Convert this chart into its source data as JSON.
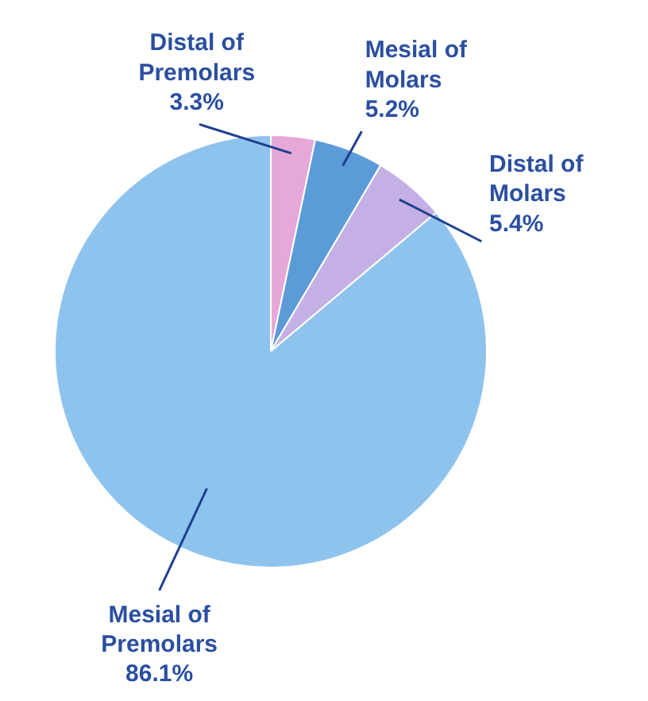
{
  "chart_data": {
    "type": "pie",
    "categories": [
      "Distal of Premolars",
      "Mesial of Molars",
      "Distal of Molars",
      "Mesial of Premolars"
    ],
    "values": [
      3.3,
      5.2,
      5.4,
      86.1
    ],
    "value_labels": [
      "3.3%",
      "5.2%",
      "5.4%",
      "86.1%"
    ],
    "colors": [
      "#e6a8d8",
      "#5b9bd8",
      "#c4b0e4",
      "#8ec3ee"
    ]
  }
}
